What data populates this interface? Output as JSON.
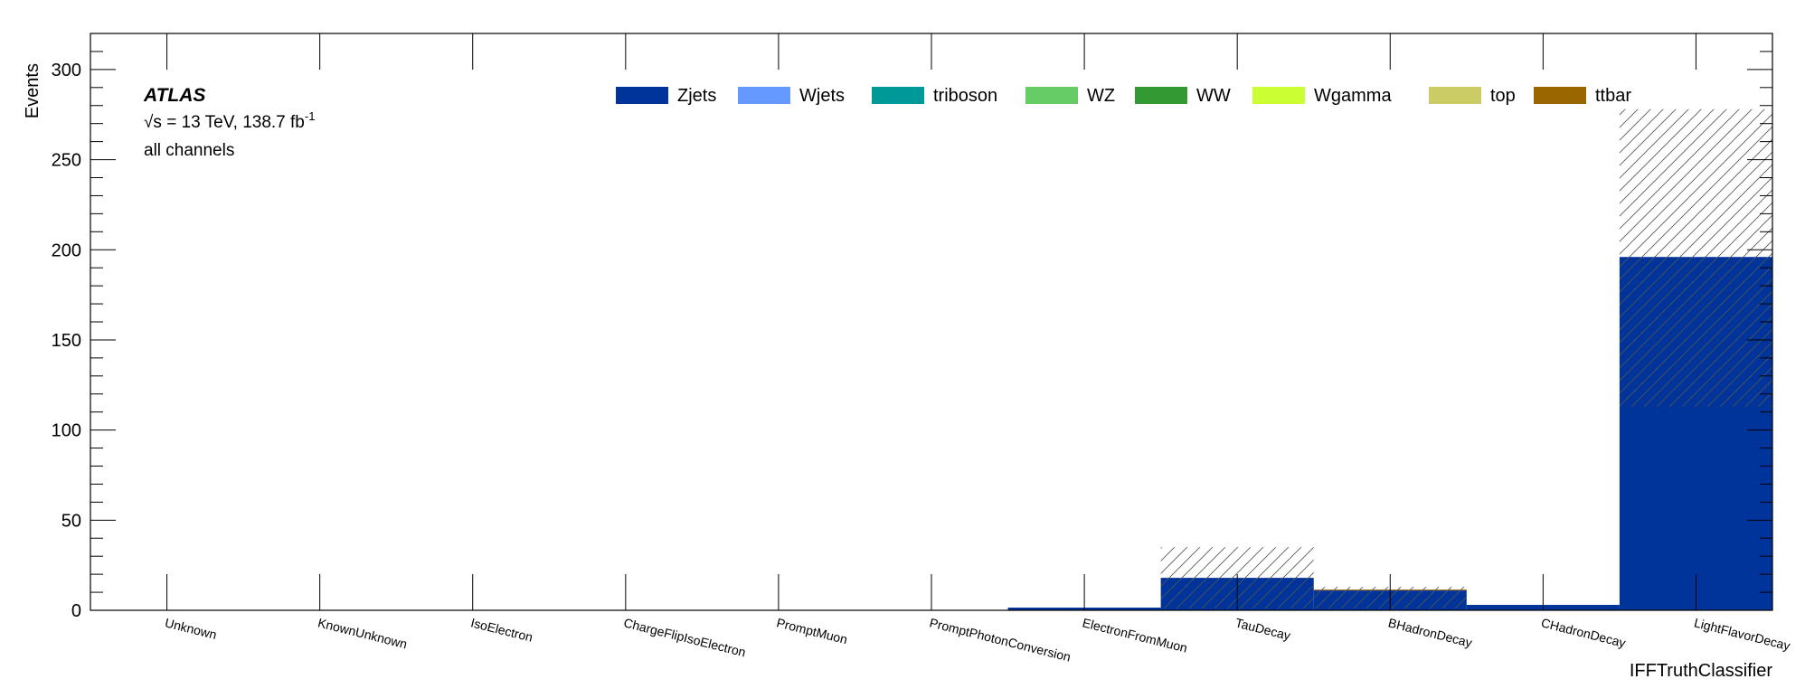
{
  "chart_data": {
    "type": "bar",
    "stacked": true,
    "ylabel": "Events",
    "xlabel": "IFFTruthClassifier",
    "ylim": [
      0,
      320
    ],
    "y_ticks": [
      0,
      50,
      100,
      150,
      200,
      250,
      300
    ],
    "categories": [
      "Unknown",
      "KnownUnknown",
      "IsoElectron",
      "ChargeFlipIsoElectron",
      "PromptMuon",
      "PromptPhotonConversion",
      "ElectronFromMuon",
      "TauDecay",
      "BHadronDecay",
      "CHadronDecay",
      "LightFlavorDecay"
    ],
    "series": [
      {
        "name": "Zjets",
        "color": "#00349a",
        "values": [
          0,
          0,
          0,
          0,
          0,
          0,
          1.5,
          18,
          11,
          3,
          196
        ]
      },
      {
        "name": "Wjets",
        "color": "#6699ff",
        "values": [
          0,
          0,
          0,
          0,
          0,
          0,
          0,
          0,
          0,
          0,
          0
        ]
      },
      {
        "name": "triboson",
        "color": "#009999",
        "values": [
          0,
          0,
          0,
          0,
          0,
          0,
          0,
          0,
          0,
          0,
          0
        ]
      },
      {
        "name": "WZ",
        "color": "#66cc66",
        "values": [
          0,
          0,
          0,
          0,
          0,
          0,
          0,
          0,
          0,
          0,
          0
        ]
      },
      {
        "name": "WW",
        "color": "#339933",
        "values": [
          0,
          0,
          0,
          0,
          0,
          0,
          0,
          0,
          0,
          0,
          0
        ]
      },
      {
        "name": "Wgamma",
        "color": "#ccff33",
        "values": [
          0,
          0,
          0,
          0,
          0,
          0,
          0,
          0,
          0,
          0,
          0
        ]
      },
      {
        "name": "top",
        "color": "#cccc66",
        "values": [
          0,
          0,
          0,
          0,
          0,
          0,
          0,
          0,
          0,
          0,
          0
        ]
      },
      {
        "name": "ttbar",
        "color": "#996600",
        "values": [
          0,
          0,
          0,
          0,
          0,
          0,
          0,
          0,
          0.5,
          0,
          0
        ]
      }
    ],
    "uncertainty_band": [
      {
        "category": "TauDecay",
        "low": 1,
        "high": 35
      },
      {
        "category": "BHadronDecay",
        "low": 1,
        "high": 13
      },
      {
        "category": "LightFlavorDecay",
        "low": 113,
        "high": 278
      }
    ],
    "legend_position": "top"
  },
  "labels": {
    "experiment": "ATLAS",
    "energy_prefix": "√s = 13 TeV, 138.7 fb",
    "energy_sup": "-1",
    "channel": "all channels"
  }
}
